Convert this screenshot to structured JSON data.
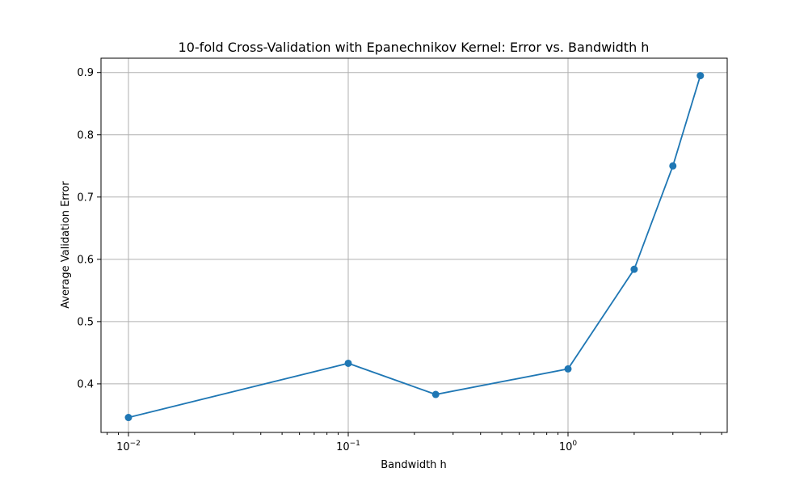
{
  "chart_data": {
    "type": "line",
    "title": "10-fold Cross-Validation with Epanechnikov Kernel: Error vs. Bandwidth h",
    "xlabel": "Bandwidth h",
    "ylabel": "Average Validation Error",
    "x_scale": "log",
    "xlim": [
      0.0075,
      5.3
    ],
    "ylim": [
      0.322,
      0.923
    ],
    "grid": true,
    "x_ticks": [
      {
        "value": 0.01,
        "mantissa": "10",
        "exponent": "−2"
      },
      {
        "value": 0.1,
        "mantissa": "10",
        "exponent": "−1"
      },
      {
        "value": 1,
        "mantissa": "10",
        "exponent": "0"
      }
    ],
    "y_ticks": [
      {
        "value": 0.4,
        "label": "0.4"
      },
      {
        "value": 0.5,
        "label": "0.5"
      },
      {
        "value": 0.6,
        "label": "0.6"
      },
      {
        "value": 0.7,
        "label": "0.7"
      },
      {
        "value": 0.8,
        "label": "0.8"
      },
      {
        "value": 0.9,
        "label": "0.9"
      }
    ],
    "series": [
      {
        "color": "#1f77b4",
        "marker": "circle",
        "x": [
          0.01,
          0.1,
          0.25,
          1,
          2,
          3,
          4
        ],
        "y": [
          0.346,
          0.433,
          0.383,
          0.424,
          0.584,
          0.75,
          0.895
        ]
      }
    ]
  }
}
